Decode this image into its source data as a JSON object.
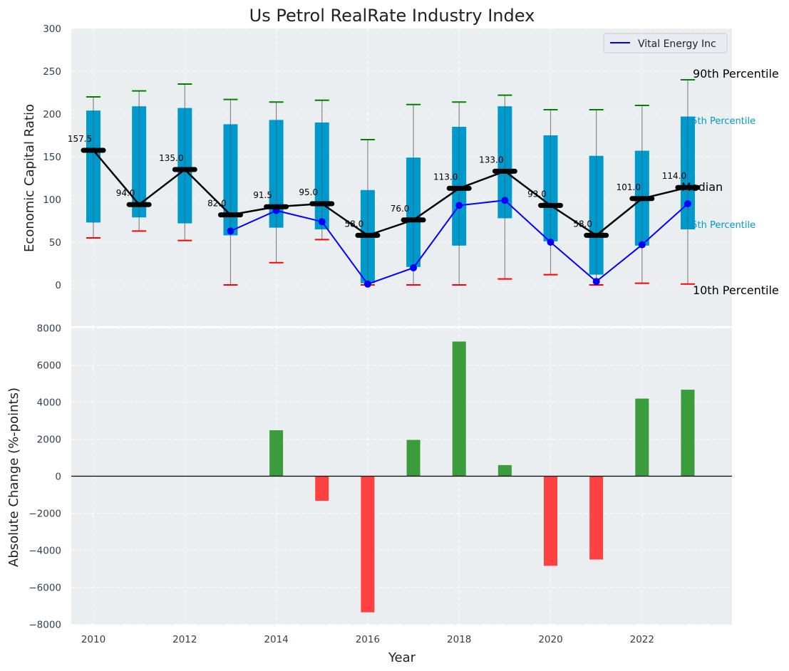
{
  "chart_data": [
    {
      "type": "box",
      "title": "Us Petrol RealRate Industry Index",
      "xlabel": "",
      "ylabel": "Economic Capital Ratio",
      "ylim": [
        -48,
        300
      ],
      "yticks": [
        0,
        50,
        100,
        150,
        200,
        250,
        300
      ],
      "grid": true,
      "legend": {
        "placement": "top-right",
        "entries": [
          "Vital Energy Inc"
        ]
      },
      "years": [
        2010,
        2011,
        2012,
        2013,
        2014,
        2015,
        2016,
        2017,
        2018,
        2019,
        2020,
        2021,
        2022,
        2023
      ],
      "p90": [
        220,
        227,
        235,
        217,
        214,
        216,
        170,
        211,
        214,
        222,
        205,
        205,
        210,
        240
      ],
      "q75": [
        204,
        209,
        207,
        188,
        193,
        190,
        111,
        149,
        185,
        209,
        175,
        151,
        157,
        197
      ],
      "median": [
        157.5,
        94.0,
        135.0,
        82.0,
        91.5,
        95.0,
        58.0,
        76.0,
        113.0,
        133.0,
        93.0,
        58.0,
        101.0,
        114.0
      ],
      "median_labels": [
        "157.5",
        "94.0",
        "135.0",
        "82.0",
        "91.5",
        "95.0",
        "58.0",
        "76.0",
        "113.0",
        "133.0",
        "93.0",
        "58.0",
        "101.0",
        "114.0"
      ],
      "q25": [
        73,
        79,
        72,
        58,
        67,
        65,
        2,
        21,
        46,
        78,
        51,
        12,
        46,
        65
      ],
      "p10": [
        55,
        63,
        52,
        0,
        26,
        53,
        0,
        0,
        0,
        7,
        12,
        0,
        2,
        1
      ],
      "series": [
        {
          "name": "Vital Energy Inc",
          "x": [
            2013,
            2014,
            2015,
            2016,
            2017,
            2018,
            2019,
            2020,
            2021,
            2022,
            2023
          ],
          "values": [
            63,
            87,
            74,
            1,
            20,
            93,
            99,
            50,
            4,
            47,
            95
          ]
        }
      ],
      "annotations": {
        "p90": "90th Percentile",
        "q75": "75th Percentile",
        "median": "Median",
        "q25": "25th Percentile",
        "p10": "10th Percentile"
      }
    },
    {
      "type": "bar",
      "xlabel": "Year",
      "ylabel": "Absolute Change (%-points)",
      "ylim": [
        -8000,
        8000
      ],
      "yticks": [
        -8000,
        -6000,
        -4000,
        -2000,
        0,
        2000,
        4000,
        6000,
        8000
      ],
      "ytick_labels": [
        "−8000",
        "−6000",
        "−4000",
        "−2000",
        "0",
        "2000",
        "4000",
        "6000",
        "8000"
      ],
      "xticks": [
        2010,
        2012,
        2014,
        2016,
        2018,
        2020,
        2022
      ],
      "xtick_labels": [
        "2010",
        "2012",
        "2014",
        "2016",
        "2018",
        "2020",
        "2022"
      ],
      "xlim": [
        2009.5,
        2024
      ],
      "grid": true,
      "categories": [
        2014,
        2015,
        2016,
        2017,
        2018,
        2019,
        2020,
        2021,
        2022,
        2023
      ],
      "values": [
        2480,
        -1330,
        -7350,
        1960,
        7270,
        600,
        -4840,
        -4500,
        4190,
        4670
      ]
    }
  ],
  "colors": {
    "box": "#0099cc",
    "whisker": "#888888",
    "p90_cap": "#008000",
    "p10_cap": "#ff0000",
    "median": "#000000",
    "series": "#0000ff",
    "positive": "#3a9c3a",
    "negative": "#ff4040",
    "axes_bg": "#eaeef0"
  }
}
